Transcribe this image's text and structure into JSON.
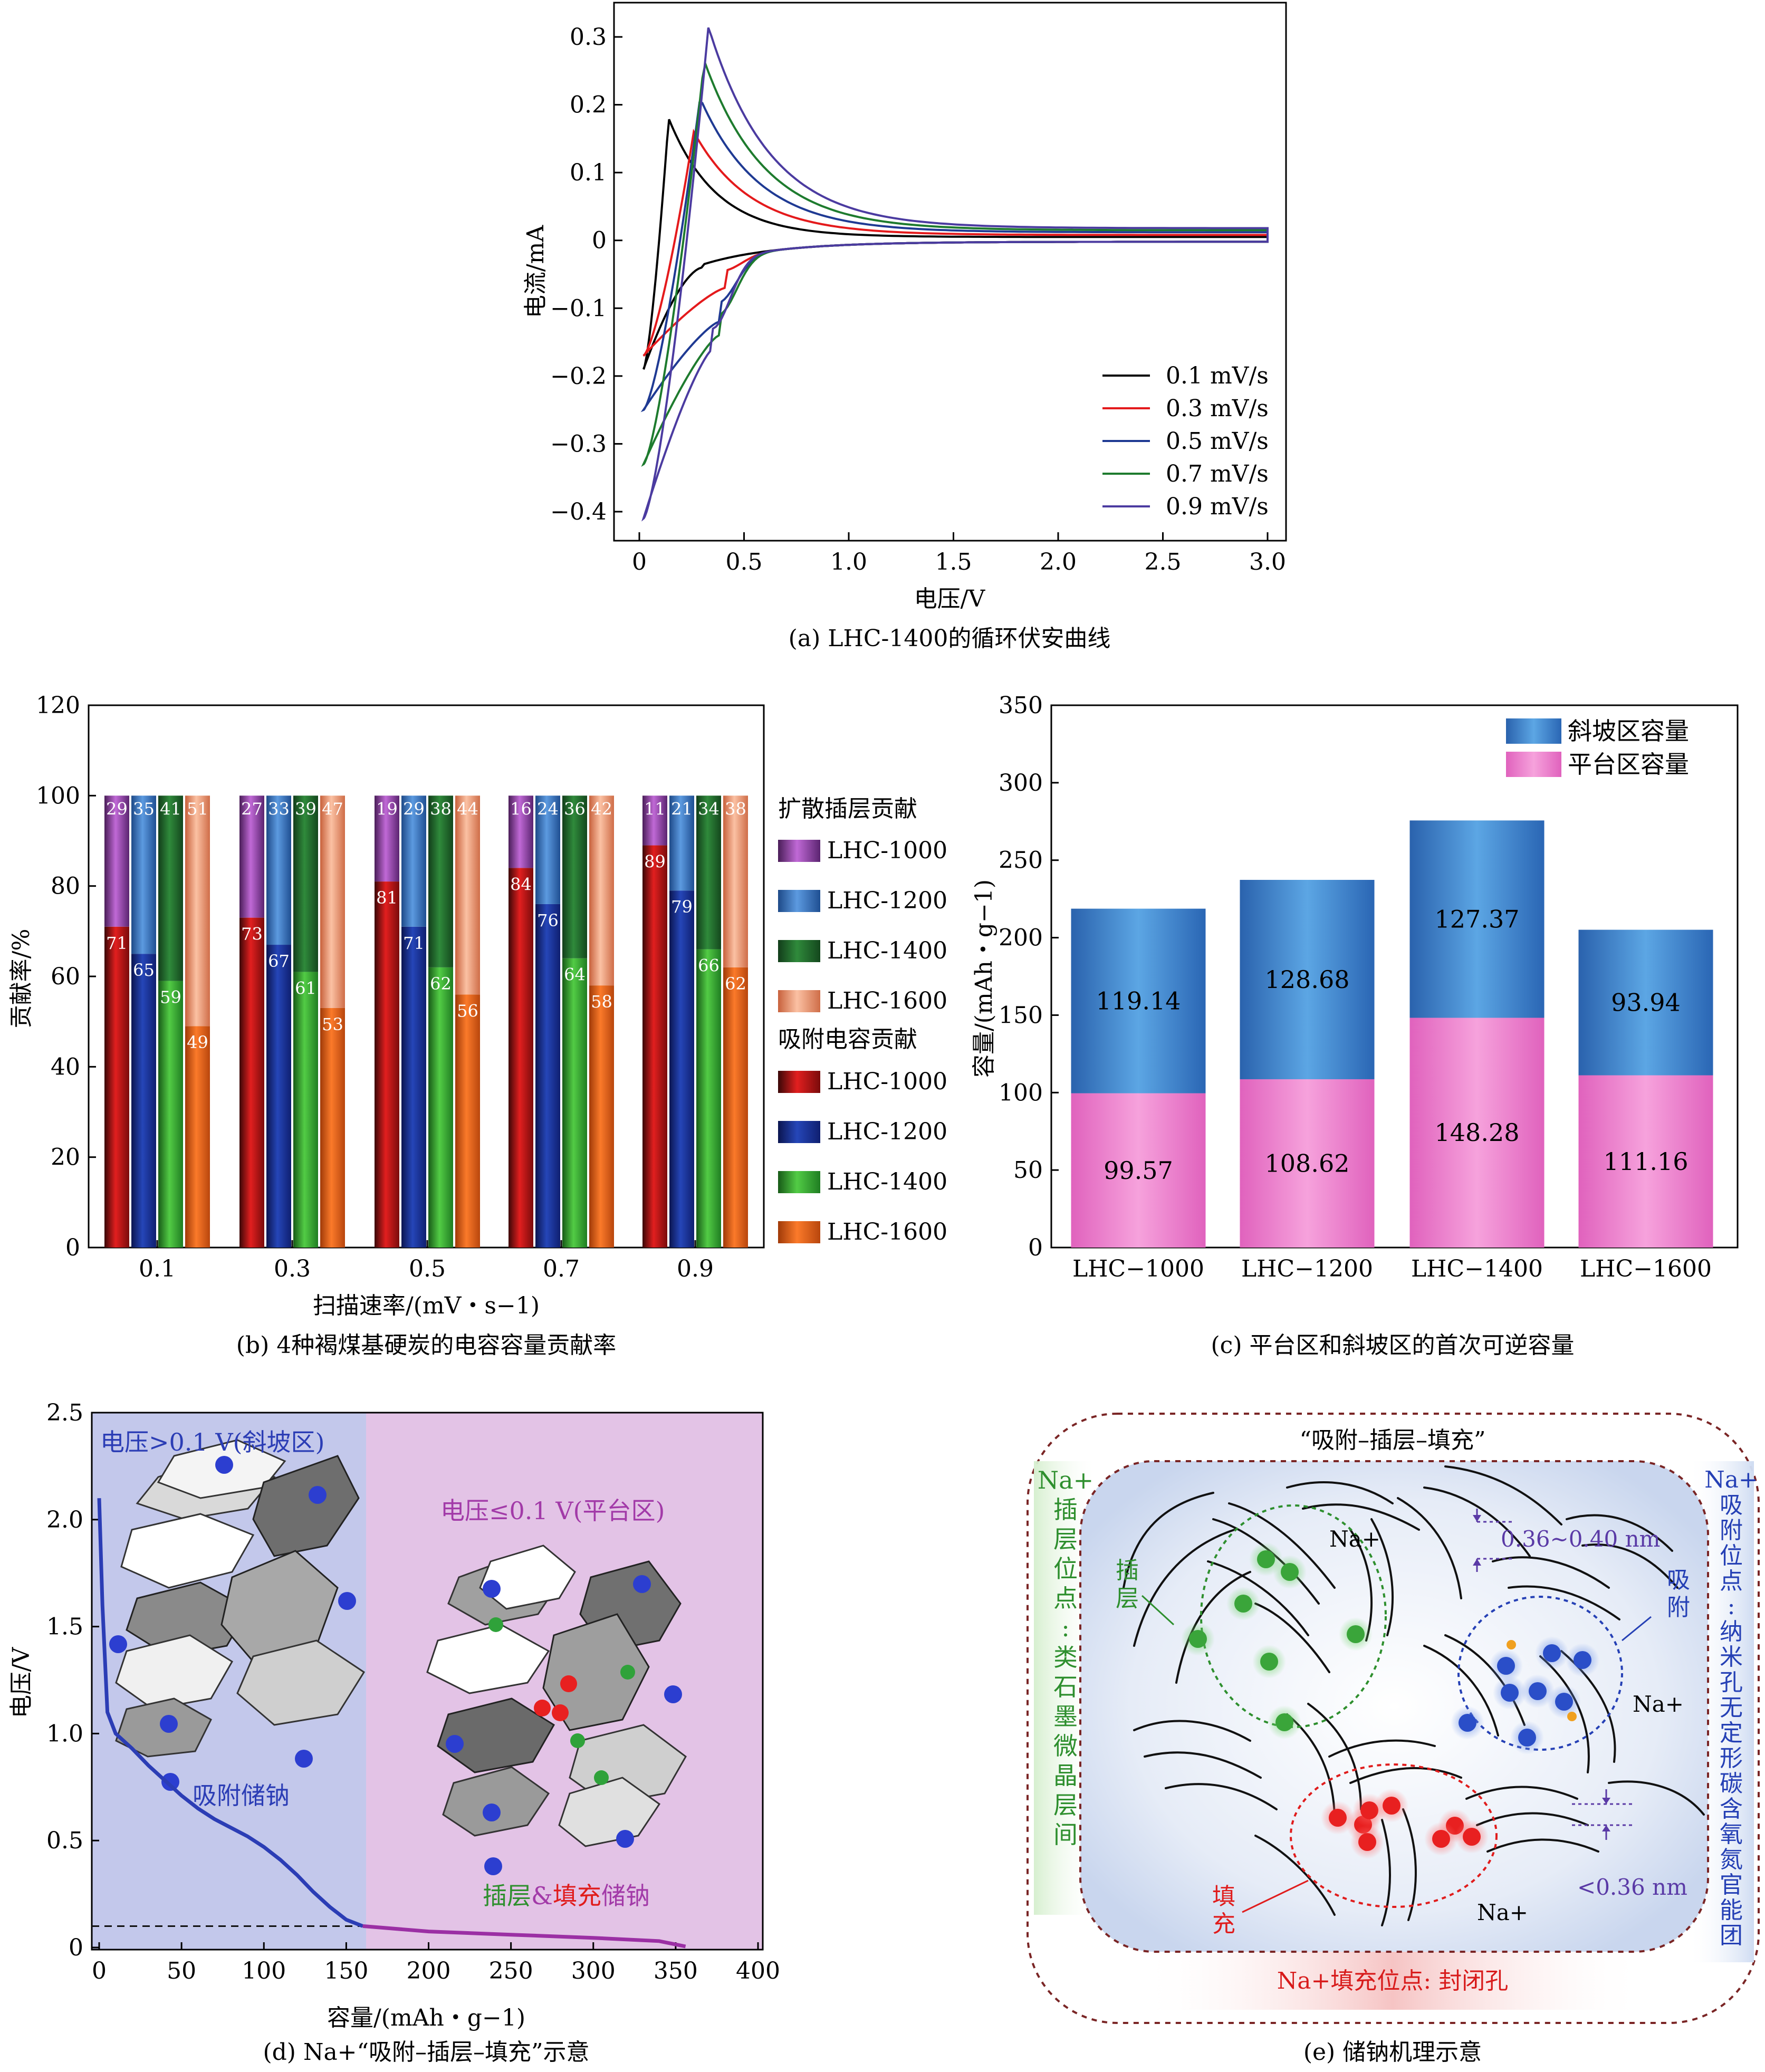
{
  "chart_data": [
    {
      "panel": "a",
      "type": "line",
      "caption": "(a) LHC-1400的循环伏安曲线",
      "xlabel": "电压/V",
      "ylabel": "电流/mA",
      "xlim": [
        0,
        3.0
      ],
      "ylim": [
        -0.42,
        0.34
      ],
      "xticks": [
        "0",
        "0.5",
        "1.0",
        "1.5",
        "2.0",
        "2.5",
        "3.0"
      ],
      "yticks": [
        "−0.4",
        "−0.3",
        "−0.2",
        "−0.1",
        "0",
        "0.1",
        "0.2",
        "0.3"
      ],
      "legend_position": "bottom-right",
      "series": [
        {
          "name": "0.1 mV/s",
          "color": "#000000",
          "peak_ox": [
            0.14,
            0.18
          ],
          "peak_red": null,
          "min_current": -0.19,
          "end_current": 0.005
        },
        {
          "name": "0.3 mV/s",
          "color": "#e41a1c",
          "peak_ox": [
            0.26,
            0.16
          ],
          "peak_red": [
            0.41,
            -0.07
          ],
          "min_current": -0.17,
          "end_current": 0.008
        },
        {
          "name": "0.5 mV/s",
          "color": "#1f3a93",
          "peak_ox": [
            0.29,
            0.21
          ],
          "peak_red": [
            0.38,
            -0.12
          ],
          "min_current": -0.25,
          "end_current": 0.012
        },
        {
          "name": "0.7 mV/s",
          "color": "#1e7b2e",
          "peak_ox": [
            0.31,
            0.265
          ],
          "peak_red": [
            0.38,
            -0.14
          ],
          "min_current": -0.33,
          "end_current": 0.015
        },
        {
          "name": "0.9 mV/s",
          "color": "#4b3ba0",
          "peak_ox": [
            0.33,
            0.315
          ],
          "peak_red": [
            0.35,
            -0.16
          ],
          "min_current": -0.41,
          "end_current": 0.018
        }
      ]
    },
    {
      "panel": "b",
      "type": "bar",
      "caption": "(b) 4种褐煤基硬炭的电容容量贡献率",
      "xlabel": "扫描速率/(mV・s−1)",
      "ylabel": "贡献率/%",
      "ylim": [
        0,
        120
      ],
      "yticks": [
        "0",
        "20",
        "40",
        "60",
        "80",
        "100",
        "120"
      ],
      "categories": [
        "0.1",
        "0.3",
        "0.5",
        "0.7",
        "0.9"
      ],
      "legend_group_diffusion": "扩散插层贡献",
      "legend_group_capacitive": "吸附电容贡献",
      "series": [
        {
          "name": "LHC-1000",
          "capacitive": [
            71,
            73,
            81,
            84,
            89
          ],
          "diffusion": [
            29,
            27,
            19,
            16,
            11
          ],
          "color_cap": "#d7191c",
          "color_dif": "#9b3fb0"
        },
        {
          "name": "LHC-1200",
          "capacitive": [
            65,
            67,
            71,
            76,
            79
          ],
          "diffusion": [
            35,
            33,
            29,
            24,
            21
          ],
          "color_cap": "#1f3ea6",
          "color_dif": "#3a78c9"
        },
        {
          "name": "LHC-1400",
          "capacitive": [
            59,
            61,
            62,
            64,
            66
          ],
          "diffusion": [
            41,
            39,
            38,
            36,
            34
          ],
          "color_cap": "#3fb33b",
          "color_dif": "#2a7a35"
        },
        {
          "name": "LHC-1600",
          "capacitive": [
            49,
            53,
            56,
            58,
            62
          ],
          "diffusion": [
            51,
            47,
            44,
            42,
            38
          ],
          "color_cap": "#f07022",
          "color_dif": "#f3a07a"
        }
      ]
    },
    {
      "panel": "c",
      "type": "bar",
      "caption": "(c) 平台区和斜坡区的首次可逆容量",
      "ylabel": "容量/(mAh・g−1)",
      "ylim": [
        0,
        350
      ],
      "yticks": [
        "0",
        "50",
        "100",
        "150",
        "200",
        "250",
        "300",
        "350"
      ],
      "categories": [
        "LHC−1000",
        "LHC−1200",
        "LHC−1400",
        "LHC−1600"
      ],
      "legend_position": "top-right",
      "series": [
        {
          "name": "平台区容量",
          "values": [
            99.57,
            108.62,
            148.28,
            111.16
          ],
          "labels": [
            "99.57",
            "108.62",
            "148.28",
            "111.16"
          ],
          "color": "#e66fc4"
        },
        {
          "name": "斜坡区容量",
          "values": [
            119.14,
            128.68,
            127.37,
            93.94
          ],
          "labels": [
            "119.14",
            "128.68",
            "127.37",
            "93.94"
          ],
          "color": "#2f7cc8"
        }
      ]
    },
    {
      "panel": "d",
      "type": "line",
      "caption": "(d) Na+“吸附–插层–填充”示意",
      "xlabel": "容量/(mAh・g−1)",
      "ylabel": "电压/V",
      "xlim": [
        0,
        400
      ],
      "ylim": [
        0,
        2.5
      ],
      "xticks": [
        "0",
        "50",
        "100",
        "150",
        "200",
        "250",
        "300",
        "350",
        "400"
      ],
      "yticks": [
        "0",
        "0.5",
        "1.0",
        "1.5",
        "2.0",
        "2.5"
      ],
      "region_slope": "电压>0.1 V(斜坡区)",
      "region_plateau": "电压≤0.1 V(平台区)",
      "label_adsorption": "吸附储钠",
      "label_intercalation": "插层",
      "label_amp": "&",
      "label_filling": "填充",
      "label_storage": "储钠",
      "boundary_capacity": 160,
      "boundary_voltage": 0.1,
      "x": [
        0,
        2,
        5,
        10,
        20,
        30,
        40,
        50,
        60,
        70,
        80,
        90,
        100,
        110,
        120,
        130,
        140,
        150,
        160,
        200,
        250,
        300,
        340,
        356
      ],
      "y": [
        2.1,
        1.6,
        1.1,
        1.0,
        0.93,
        0.85,
        0.78,
        0.71,
        0.65,
        0.6,
        0.56,
        0.52,
        0.47,
        0.41,
        0.34,
        0.26,
        0.19,
        0.13,
        0.1,
        0.075,
        0.06,
        0.045,
        0.03,
        0.005
      ]
    }
  ],
  "panel_e": {
    "caption": "(e) 储钠机理示意",
    "title": "“吸附–插层–填充”",
    "left_label": [
      "Na+",
      "插",
      "层",
      "位",
      "点",
      ":",
      "类",
      "石",
      "墨",
      "微",
      "晶",
      "层",
      "间"
    ],
    "right_label": [
      "Na+",
      "吸",
      "附",
      "位",
      "点",
      ":",
      "纳",
      "米",
      "孔",
      "无",
      "定",
      "形",
      "碳",
      "含",
      "氧",
      "氮",
      "官",
      "能",
      "团"
    ],
    "bottom_label": "Na+填充位点: 封闭孔",
    "label_intercalation": [
      "插",
      "层"
    ],
    "label_adsorption": [
      "吸",
      "附"
    ],
    "label_filling": [
      "填",
      "充"
    ],
    "na_label": "Na+",
    "spacing_large": "0.36~0.40 nm",
    "spacing_small": "<0.36 nm"
  }
}
